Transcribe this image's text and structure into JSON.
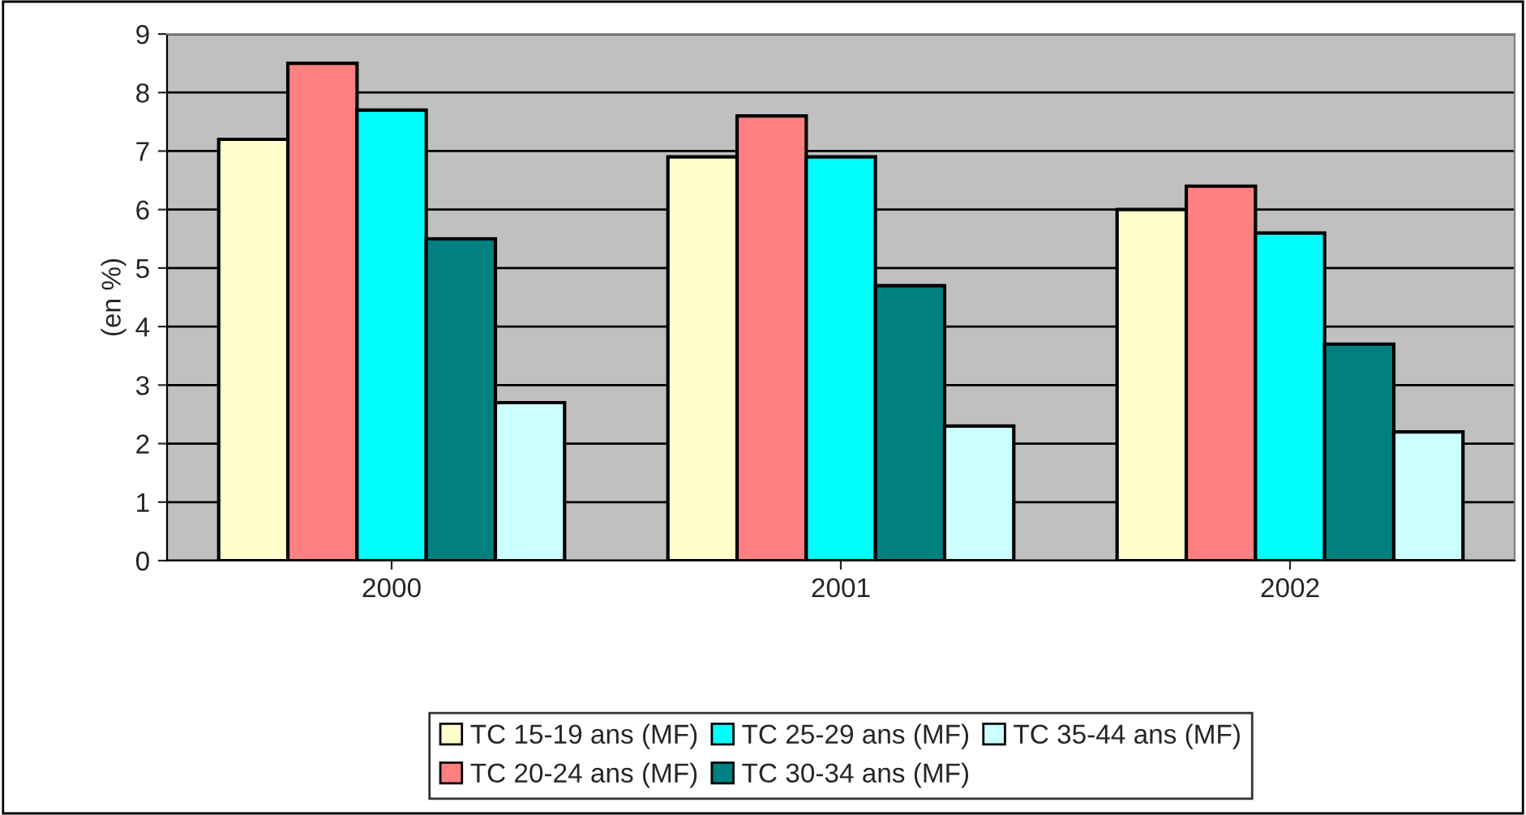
{
  "chart_data": {
    "type": "bar",
    "ylabel": "(en %)",
    "categories": [
      "2000",
      "2001",
      "2002"
    ],
    "series": [
      {
        "name": "TC 15-19 ans (MF)",
        "color": "#ffffcc",
        "values": [
          7.2,
          6.9,
          6.0
        ]
      },
      {
        "name": "TC 20-24 ans (MF)",
        "color": "#ff8080",
        "values": [
          8.5,
          7.6,
          6.4
        ]
      },
      {
        "name": "TC 25-29 ans (MF)",
        "color": "#00ffff",
        "values": [
          7.7,
          6.9,
          5.6
        ]
      },
      {
        "name": "TC 30-34 ans (MF)",
        "color": "#008080",
        "values": [
          5.5,
          4.7,
          3.7
        ]
      },
      {
        "name": "TC 35-44 ans (MF)",
        "color": "#ccffff",
        "values": [
          2.7,
          2.3,
          2.2
        ]
      }
    ],
    "ylim": [
      0,
      9
    ],
    "yticks": [
      0,
      1,
      2,
      3,
      4,
      5,
      6,
      7,
      8,
      9
    ],
    "grid": "y",
    "legend": "bottom"
  }
}
